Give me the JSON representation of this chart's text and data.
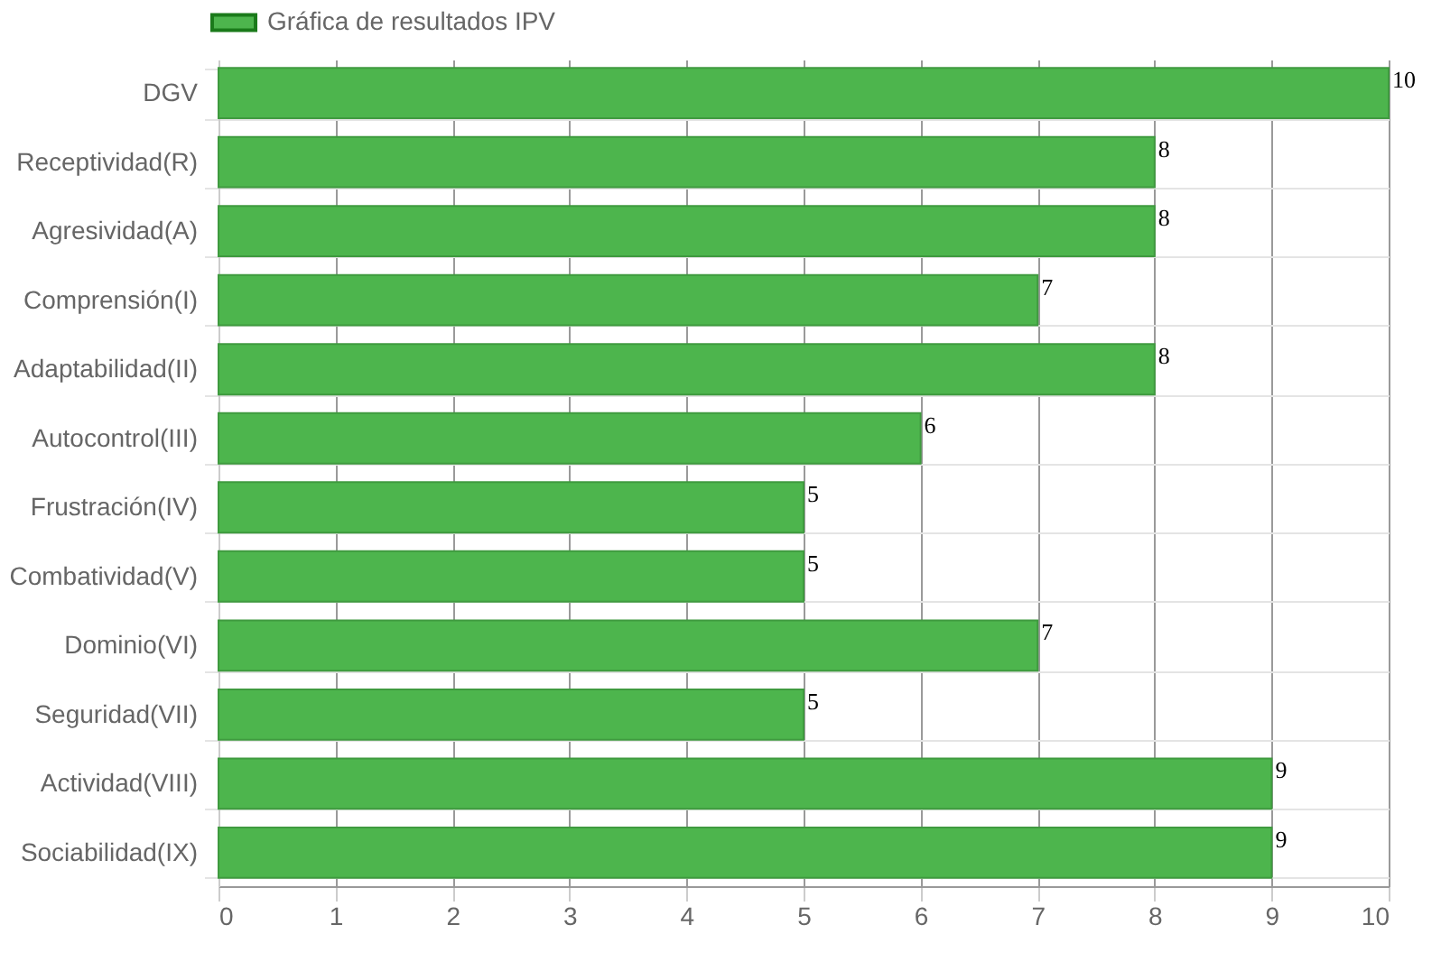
{
  "chart_data": {
    "type": "bar",
    "orientation": "horizontal",
    "categories": [
      "DGV",
      "Receptividad(R)",
      "Agresividad(A)",
      "Comprensión(I)",
      "Adaptabilidad(II)",
      "Autocontrol(III)",
      "Frustración(IV)",
      "Combatividad(V)",
      "Dominio(VI)",
      "Seguridad(VII)",
      "Actividad(VIII)",
      "Sociabilidad(IX)"
    ],
    "series": [
      {
        "name": "Gráfica de resultados IPV",
        "color": "#4db54d",
        "values": [
          10,
          8,
          8,
          7,
          8,
          6,
          5,
          5,
          7,
          5,
          9,
          9
        ]
      }
    ],
    "xlim": [
      0,
      10
    ],
    "xticks": [
      0,
      1,
      2,
      3,
      4,
      5,
      6,
      7,
      8,
      9,
      10
    ],
    "grid": true,
    "legend": "top",
    "data_labels": true
  }
}
